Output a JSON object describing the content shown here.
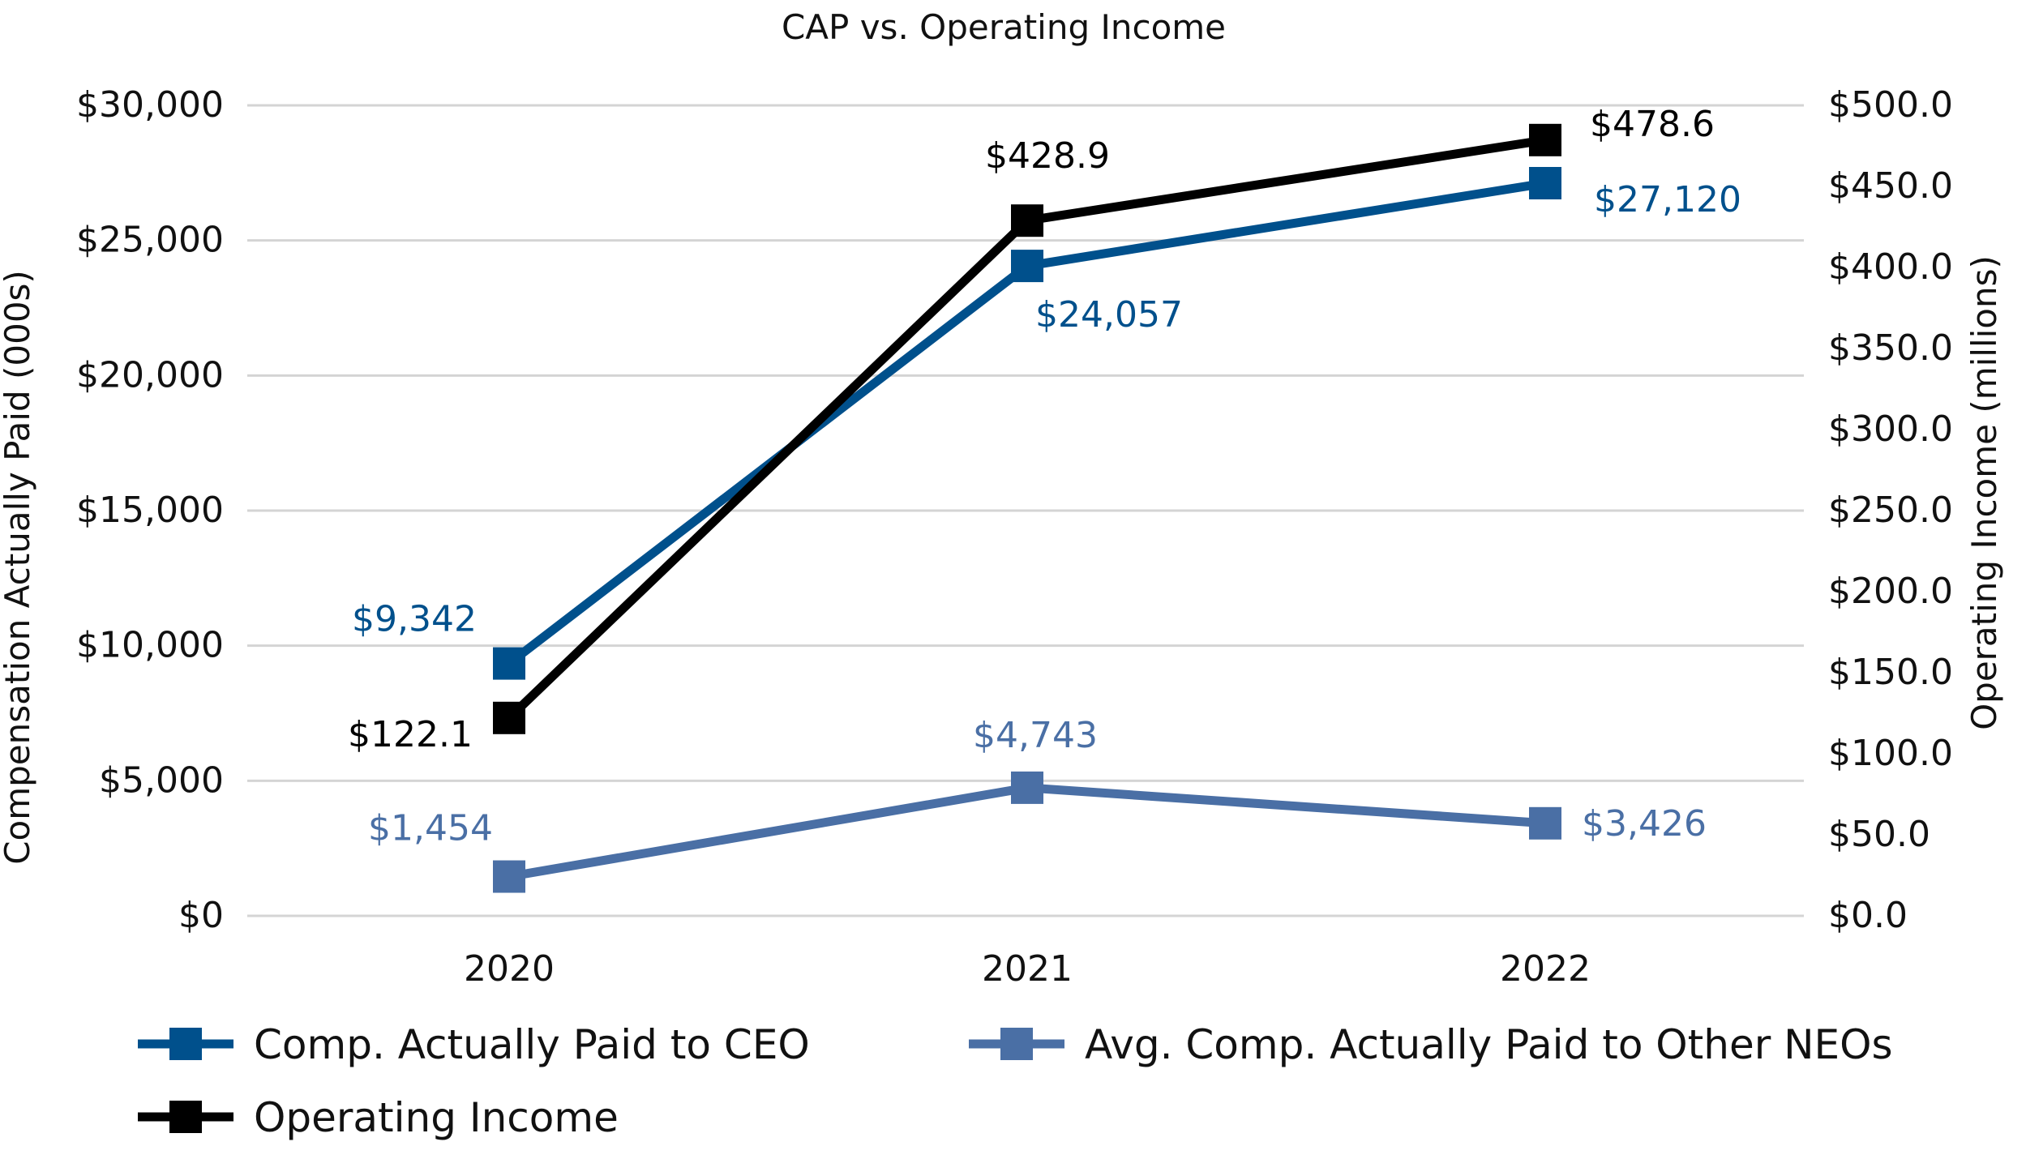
{
  "chart_data": {
    "type": "line",
    "title": "CAP vs. Operating Income",
    "categories": [
      "2020",
      "2021",
      "2022"
    ],
    "ylabel_left": "Compensation Actually Paid (000s)",
    "ylabel_right": "Operating Income (millions)",
    "ylim_left": [
      0,
      30000
    ],
    "ylim_right": [
      0,
      500
    ],
    "yticks_left": [
      {
        "value": 0,
        "label": "$0"
      },
      {
        "value": 5000,
        "label": "$5,000"
      },
      {
        "value": 10000,
        "label": "$10,000"
      },
      {
        "value": 15000,
        "label": "$15,000"
      },
      {
        "value": 20000,
        "label": "$20,000"
      },
      {
        "value": 25000,
        "label": "$25,000"
      },
      {
        "value": 30000,
        "label": "$30,000"
      }
    ],
    "yticks_right": [
      {
        "value": 0,
        "label": "$0.0"
      },
      {
        "value": 50,
        "label": "$50.0"
      },
      {
        "value": 100,
        "label": "$100.0"
      },
      {
        "value": 150,
        "label": "$150.0"
      },
      {
        "value": 200,
        "label": "$200.0"
      },
      {
        "value": 250,
        "label": "$250.0"
      },
      {
        "value": 300,
        "label": "$300.0"
      },
      {
        "value": 350,
        "label": "$350.0"
      },
      {
        "value": 400,
        "label": "$400.0"
      },
      {
        "value": 450,
        "label": "$450.0"
      },
      {
        "value": 500,
        "label": "$500.0"
      }
    ],
    "grid": true,
    "legend": "bottom",
    "series": [
      {
        "id": "ceo",
        "name": "Comp. Actually Paid to CEO",
        "axis": "left",
        "color": "#00508c",
        "values": [
          9342,
          24057,
          27120
        ],
        "labels": [
          "$9,342",
          "$24,057",
          "$27,120"
        ]
      },
      {
        "id": "neo",
        "name": "Avg. Comp. Actually Paid to Other NEOs",
        "axis": "left",
        "color": "#4a6fa5",
        "values": [
          1454,
          4743,
          3426
        ],
        "labels": [
          "$1,454",
          "$4,743",
          "$3,426"
        ]
      },
      {
        "id": "opinc",
        "name": "Operating Income",
        "axis": "right",
        "color": "#000000",
        "values": [
          122.1,
          428.9,
          478.6
        ],
        "labels": [
          "$122.1",
          "$428.9",
          "$478.6"
        ]
      }
    ]
  }
}
